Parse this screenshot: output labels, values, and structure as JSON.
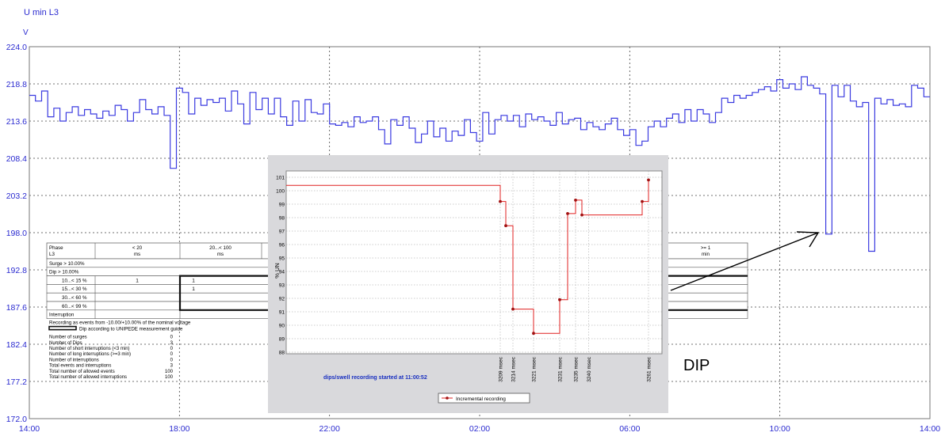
{
  "chart_data": [
    {
      "type": "line",
      "title": "U min L3",
      "ylabel": "V",
      "ylim": [
        172.0,
        224.0
      ],
      "y_ticks": [
        "224.0",
        "218.8",
        "213.6",
        "208.4",
        "203.2",
        "198.0",
        "192.8",
        "187.6",
        "182.4",
        "177.2",
        "172.0"
      ],
      "x_ticks": [
        "14:00",
        "18:00",
        "22:00",
        "02:00",
        "06:00",
        "10:00",
        "14:00"
      ],
      "x_range_hours": [
        0,
        24
      ],
      "grid": true,
      "line_color": "#3a3ae0",
      "series": [
        {
          "values": [
            217.2,
            216.4,
            217.8,
            214.2,
            215.4,
            213.6,
            214.8,
            215.6,
            214.4,
            215.2,
            214.6,
            214.0,
            215.0,
            214.4,
            215.8,
            215.2,
            213.6,
            214.8,
            216.6,
            215.2,
            214.6,
            215.6,
            214.4,
            207.0,
            218.2,
            217.6,
            214.6,
            216.8,
            215.8,
            216.6,
            216.2,
            216.8,
            215.0,
            217.8,
            216.0,
            213.2,
            217.6,
            215.2,
            216.8,
            214.6,
            216.8,
            214.2,
            213.0,
            216.4,
            213.6,
            216.6,
            214.8,
            214.6,
            216.0,
            213.2,
            213.0,
            213.4,
            212.8,
            214.2,
            213.4,
            213.6,
            214.2,
            212.4,
            210.4,
            213.8,
            213.0,
            214.2,
            212.6,
            210.6,
            211.8,
            213.6,
            211.4,
            212.6,
            210.8,
            212.2,
            211.6,
            213.8,
            212.0,
            210.8,
            214.8,
            211.8,
            213.8,
            214.4,
            213.6,
            214.4,
            212.8,
            214.6,
            213.8,
            214.2,
            213.6,
            213.0,
            214.8,
            213.2,
            213.8,
            214.0,
            212.4,
            213.4,
            212.8,
            212.4,
            213.2,
            214.0,
            212.4,
            211.6,
            212.4,
            210.2,
            210.8,
            212.8,
            213.6,
            212.8,
            214.0,
            214.6,
            213.4,
            215.2,
            213.6,
            215.2,
            214.6,
            213.4,
            214.8,
            216.8,
            216.2,
            217.2,
            216.8,
            217.2,
            217.6,
            218.0,
            218.4,
            217.8,
            219.4,
            218.2,
            218.8,
            218.0,
            219.8,
            218.6,
            218.2,
            217.4,
            197.8,
            218.6,
            217.0,
            218.6,
            216.4,
            215.6,
            216.2,
            195.4,
            216.8,
            216.0,
            216.6,
            215.8,
            216.0,
            215.6,
            218.6,
            218.2,
            217.0
          ],
          "dips": [
            {
              "x_hours": 20.82,
              "value": 197.8
            },
            {
              "x_hours": 22.12,
              "value": 195.4
            }
          ]
        }
      ]
    },
    {
      "type": "line",
      "ylabel": "% UN",
      "ylim": [
        88,
        101
      ],
      "y_ticks": [
        "101",
        "100",
        "99",
        "98",
        "97",
        "96",
        "95",
        "94",
        "93",
        "92",
        "91",
        "90",
        "89",
        "88"
      ],
      "x_labels": [
        "3209 msec",
        "3214 msec",
        "3221 msec",
        "3231 msec",
        "3235 msec",
        "3240 msec",
        "3261 msec"
      ],
      "caption": "dips/swell recording started at  11:00:52",
      "legend": "Incremental recording",
      "line_color": "#e02020",
      "points": [
        {
          "x": 3209,
          "y": 99.2
        },
        {
          "x": 3211,
          "y": 97.4
        },
        {
          "x": 3214,
          "y": 91.2
        },
        {
          "x": 3221,
          "y": 89.4
        },
        {
          "x": 3231,
          "y": 91.9
        },
        {
          "x": 3233,
          "y": 98.3
        },
        {
          "x": 3235,
          "y": 99.3
        },
        {
          "x": 3237,
          "y": 98.2
        },
        {
          "x": 3259,
          "y": 99.2
        },
        {
          "x": 3261,
          "y": 100.8
        }
      ],
      "start_level": 100.4
    }
  ],
  "events_table": {
    "header": [
      "Phase\nL3",
      "< 20\nms",
      "20...< 100\nms",
      ">= 1\nmin"
    ],
    "rows": [
      [
        "Surge > 10.00%",
        "",
        "",
        ""
      ],
      [
        "Dip > 10.00%",
        "",
        "",
        ""
      ],
      [
        "10...< 15 %",
        "1",
        "1",
        ""
      ],
      [
        "15...< 30 %",
        "",
        "1",
        ""
      ],
      [
        "30...< 60 %",
        "",
        "",
        ""
      ],
      [
        "60...< 99 %",
        "",
        "",
        ""
      ],
      [
        "Interruption",
        "",
        "",
        ""
      ]
    ],
    "note": "Recording as events from -10.00/+10.00% of the nominal voltage",
    "legend_box": "Dip according to UNIPEDE measurement guide",
    "stats": [
      {
        "label": "Number of surges",
        "value": "0"
      },
      {
        "label": "Number of Dips",
        "value": "3"
      },
      {
        "label": "Number of short interruptions (<3 min)",
        "value": "0"
      },
      {
        "label": "Number of long interruptions (>=3 min)",
        "value": "0"
      },
      {
        "label": "Number of interruptions",
        "value": "0"
      },
      {
        "label": "Total events and interruptions",
        "value": "3"
      },
      {
        "label": "Total number of allowed events",
        "value": "100"
      },
      {
        "label": "Total number of allowed interruptions",
        "value": "100"
      }
    ]
  },
  "annotation": {
    "label": "DIP"
  }
}
